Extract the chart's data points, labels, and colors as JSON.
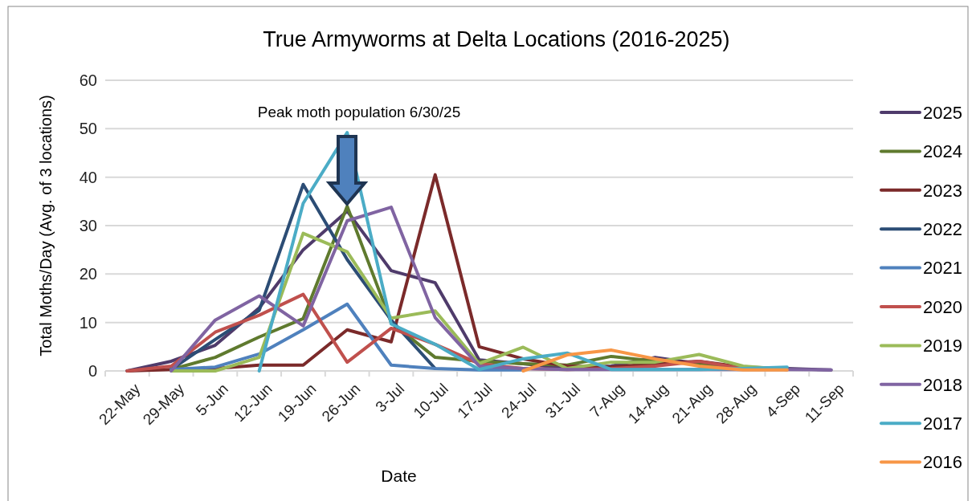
{
  "chart_data": {
    "type": "line",
    "title": "True Armyworms at Delta Locations (2016-2025)",
    "xlabel": "Date",
    "ylabel": "Total Moths/Day (Avg. of 3 locations)",
    "categories": [
      "22-May",
      "29-May",
      "5-Jun",
      "12-Jun",
      "19-Jun",
      "26-Jun",
      "3-Jul",
      "10-Jul",
      "17-Jul",
      "24-Jul",
      "31-Jul",
      "7-Aug",
      "14-Aug",
      "21-Aug",
      "28-Aug",
      "4-Sep",
      "11-Sep"
    ],
    "ylim": [
      0,
      60
    ],
    "yticks": [
      0,
      10,
      20,
      30,
      40,
      50,
      60
    ],
    "grid": "y",
    "legend": "right",
    "marker": "none",
    "line_style": "solid",
    "annotations": [
      "Peak moth population 6/30/25"
    ],
    "series": [
      {
        "name": "2025",
        "color": "#4f3b6b",
        "values": [
          0,
          2,
          5.3,
          13,
          25,
          33,
          20.7,
          18.2,
          2.3,
          1.5,
          0.5,
          1,
          2.8,
          1.5,
          0.8,
          0.5,
          0.2
        ]
      },
      {
        "name": "2024",
        "color": "#5f7a2e",
        "values": [
          null,
          0.3,
          2.8,
          7,
          10.8,
          34,
          10,
          2.8,
          2,
          1.5,
          1.2,
          3,
          2,
          1.5,
          0.8,
          null,
          null
        ]
      },
      {
        "name": "2023",
        "color": "#7b2a2a",
        "values": [
          0,
          0.3,
          0.5,
          1.2,
          1.2,
          8.5,
          6,
          40.5,
          5,
          2.5,
          1,
          0.8,
          1.5,
          2,
          0.8,
          0.3,
          null
        ]
      },
      {
        "name": "2022",
        "color": "#2c4d75",
        "values": [
          null,
          0.3,
          6.5,
          12.5,
          38.5,
          23,
          10.5,
          0.5,
          null,
          null,
          null,
          null,
          null,
          null,
          null,
          null,
          null
        ]
      },
      {
        "name": "2021",
        "color": "#4f81bd",
        "values": [
          null,
          0.3,
          0.8,
          3.5,
          8.5,
          13.8,
          1.2,
          0.5,
          0.2,
          0.2,
          null,
          null,
          null,
          null,
          null,
          null,
          null
        ]
      },
      {
        "name": "2020",
        "color": "#c0504d",
        "values": [
          0,
          1,
          8,
          11.5,
          15.8,
          1.8,
          8.8,
          5.5,
          1.5,
          0.5,
          0.3,
          0.5,
          1,
          2,
          0.5,
          null,
          null
        ]
      },
      {
        "name": "2019",
        "color": "#9bbb59",
        "values": [
          null,
          0,
          0,
          2.8,
          28.4,
          24.6,
          10.9,
          12.4,
          1.5,
          4.9,
          0.5,
          1.8,
          1.8,
          3.4,
          1,
          0.3,
          null
        ]
      },
      {
        "name": "2018",
        "color": "#8064a2",
        "values": [
          null,
          0,
          10.5,
          15.5,
          9.3,
          31,
          33.8,
          11,
          1,
          0.5,
          0.3,
          0.3,
          0.3,
          0.3,
          0.3,
          0.3,
          0.2
        ]
      },
      {
        "name": "2017",
        "color": "#4bacc6",
        "values": [
          null,
          null,
          null,
          0,
          34.6,
          49.2,
          9.7,
          5.5,
          0.3,
          2.5,
          3.7,
          0.3,
          0.3,
          0.3,
          0.5,
          0.8,
          null
        ]
      },
      {
        "name": "2016",
        "color": "#f79646",
        "values": [
          null,
          null,
          null,
          null,
          null,
          null,
          null,
          null,
          null,
          0,
          3.3,
          4.3,
          2.5,
          1,
          0.2,
          0.2,
          null
        ]
      }
    ]
  }
}
